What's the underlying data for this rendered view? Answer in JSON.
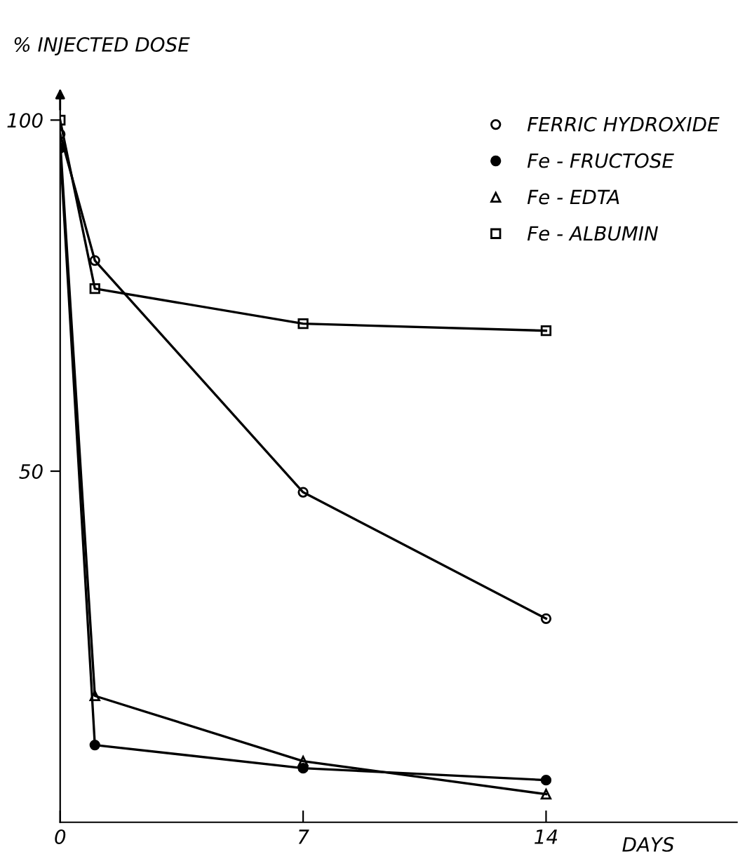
{
  "chart_data": {
    "type": "line",
    "xlabel": "DAYS",
    "ylabel": "% INJECTED DOSE",
    "x": [
      0,
      1,
      7,
      14
    ],
    "series": [
      {
        "name": "FERRIC HYDROXIDE",
        "color": "#000000",
        "marker": "circle",
        "values": [
          98,
          80,
          47,
          29
        ]
      },
      {
        "name": "Fe - FRUCTOSE",
        "color": "#000000",
        "marker": "circle",
        "values": [
          96,
          11,
          7.7,
          6
        ]
      },
      {
        "name": "Fe - EDTA",
        "color": "#000000",
        "marker": "triangle",
        "values": [
          97,
          18,
          8.7,
          4
        ]
      },
      {
        "name": "Fe - ALBUMIN",
        "color": "#000000",
        "marker": "square",
        "values": [
          100,
          76,
          71,
          70
        ]
      }
    ],
    "xlim": [
      0,
      19.5
    ],
    "ylim": [
      0,
      103
    ],
    "xticks": [
      0,
      7,
      14
    ],
    "yticks": [
      50,
      100
    ],
    "grid": false,
    "legend": "top right",
    "line_style": "solid"
  }
}
